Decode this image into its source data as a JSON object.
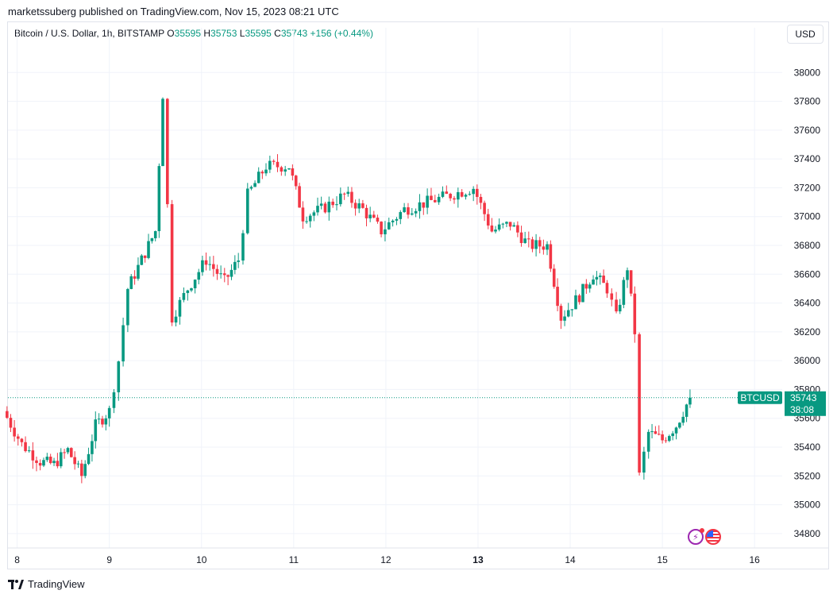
{
  "header": {
    "published": "marketssuberg published on TradingView.com, Nov 15, 2023 08:21 UTC"
  },
  "symbol": {
    "name": "Bitcoin / U.S. Dollar, 1h, BITSTAMP",
    "o_label": "O",
    "o": "35595",
    "h_label": "H",
    "h": "35753",
    "l_label": "L",
    "l": "35595",
    "c_label": "C",
    "c": "35743",
    "change": "+156 (+0.44%)"
  },
  "currency": "USD",
  "price_tag": {
    "symbol": "BTCUSD",
    "price": "35743",
    "countdown": "38:08"
  },
  "footer": {
    "brand": "TradingView"
  },
  "colors": {
    "up": "#089981",
    "down": "#f23645",
    "grid": "#f0f3fa",
    "axis_text": "#131722"
  },
  "icons": [
    "lightning-event-icon",
    "us-flag-event-icon"
  ],
  "chart_data": {
    "type": "candlestick",
    "interval": "1h",
    "ylim": [
      34700,
      38200
    ],
    "xlim": [
      7.9,
      16.3
    ],
    "y_ticks": [
      34800,
      35000,
      35200,
      35400,
      35600,
      35800,
      36000,
      36200,
      36400,
      36600,
      36800,
      37000,
      37200,
      37400,
      37600,
      37800,
      38000
    ],
    "x_ticks": [
      {
        "value": 8,
        "label": "8"
      },
      {
        "value": 9,
        "label": "9"
      },
      {
        "value": 10,
        "label": "10"
      },
      {
        "value": 11,
        "label": "11"
      },
      {
        "value": 12,
        "label": "12"
      },
      {
        "value": 13,
        "label": "13",
        "bold": true
      },
      {
        "value": 14,
        "label": "14"
      },
      {
        "value": 15,
        "label": "15"
      },
      {
        "value": 16,
        "label": "16"
      }
    ],
    "last_price": 35743,
    "points": [
      {
        "day": 7.85,
        "close": 35650
      },
      {
        "day": 8.05,
        "close": 35420
      },
      {
        "day": 8.25,
        "close": 35300
      },
      {
        "day": 8.4,
        "close": 35280
      },
      {
        "day": 8.55,
        "close": 35380
      },
      {
        "day": 8.7,
        "close": 35200
      },
      {
        "day": 8.85,
        "close": 35550
      },
      {
        "day": 9.0,
        "close": 35650
      },
      {
        "day": 9.1,
        "close": 36000
      },
      {
        "day": 9.2,
        "close": 36500
      },
      {
        "day": 9.35,
        "close": 36700
      },
      {
        "day": 9.5,
        "close": 36900
      },
      {
        "day": 9.58,
        "close": 37850
      },
      {
        "day": 9.68,
        "close": 36300
      },
      {
        "day": 9.85,
        "close": 36500
      },
      {
        "day": 10.05,
        "close": 36700
      },
      {
        "day": 10.25,
        "close": 36550
      },
      {
        "day": 10.4,
        "close": 36700
      },
      {
        "day": 10.5,
        "close": 37150
      },
      {
        "day": 10.7,
        "close": 37350
      },
      {
        "day": 10.95,
        "close": 37350
      },
      {
        "day": 11.1,
        "close": 37000
      },
      {
        "day": 11.3,
        "close": 37050
      },
      {
        "day": 11.55,
        "close": 37150
      },
      {
        "day": 11.75,
        "close": 37050
      },
      {
        "day": 11.95,
        "close": 36900
      },
      {
        "day": 12.2,
        "close": 37050
      },
      {
        "day": 12.45,
        "close": 37100
      },
      {
        "day": 12.7,
        "close": 37150
      },
      {
        "day": 12.95,
        "close": 37200
      },
      {
        "day": 13.15,
        "close": 36900
      },
      {
        "day": 13.35,
        "close": 36950
      },
      {
        "day": 13.55,
        "close": 36800
      },
      {
        "day": 13.75,
        "close": 36800
      },
      {
        "day": 13.9,
        "close": 36300
      },
      {
        "day": 14.1,
        "close": 36450
      },
      {
        "day": 14.25,
        "close": 36600
      },
      {
        "day": 14.4,
        "close": 36500
      },
      {
        "day": 14.5,
        "close": 36300
      },
      {
        "day": 14.62,
        "close": 36650
      },
      {
        "day": 14.7,
        "close": 36200
      },
      {
        "day": 14.75,
        "close": 35200
      },
      {
        "day": 14.85,
        "close": 35500
      },
      {
        "day": 15.0,
        "close": 35450
      },
      {
        "day": 15.15,
        "close": 35550
      },
      {
        "day": 15.3,
        "close": 35743
      }
    ]
  }
}
